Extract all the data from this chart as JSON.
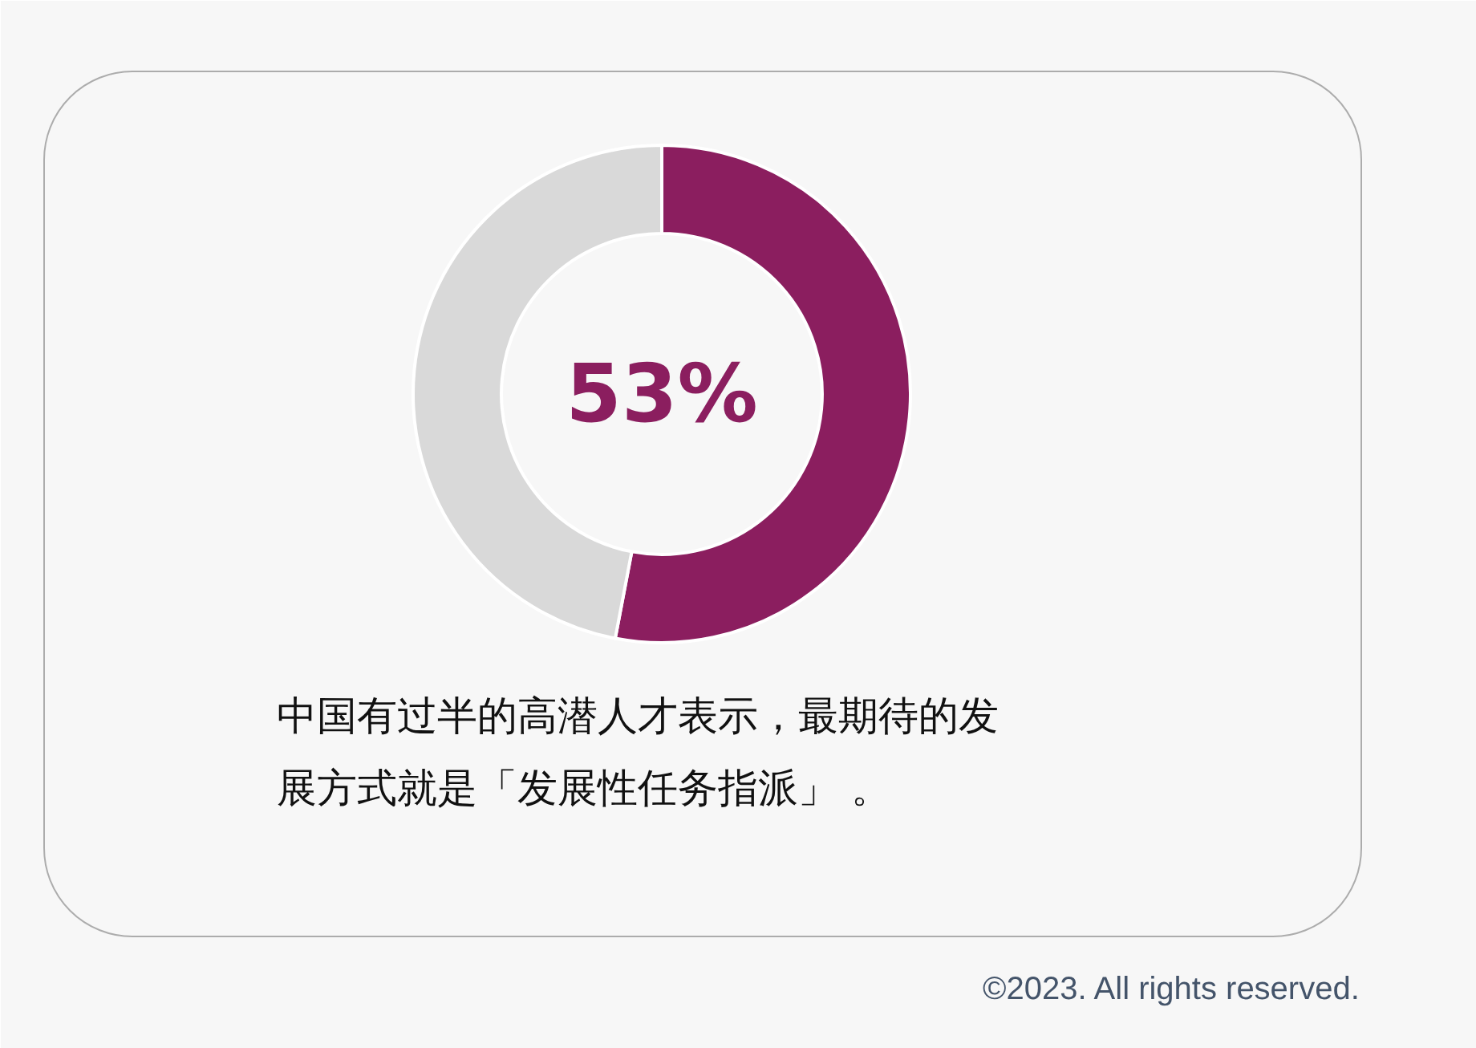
{
  "chart_data": {
    "type": "donut",
    "categories": [
      null,
      null
    ],
    "values": [
      53,
      47
    ],
    "colors": [
      "#8b1e5f",
      "#d9d9d9"
    ],
    "value_labels": [
      "53%",
      null
    ],
    "annotations": [
      "中国有过半的高潜人才表示，最期待的发展方式就是「发展性任务指派」 。",
      "©2023. All rights reserved."
    ]
  }
}
